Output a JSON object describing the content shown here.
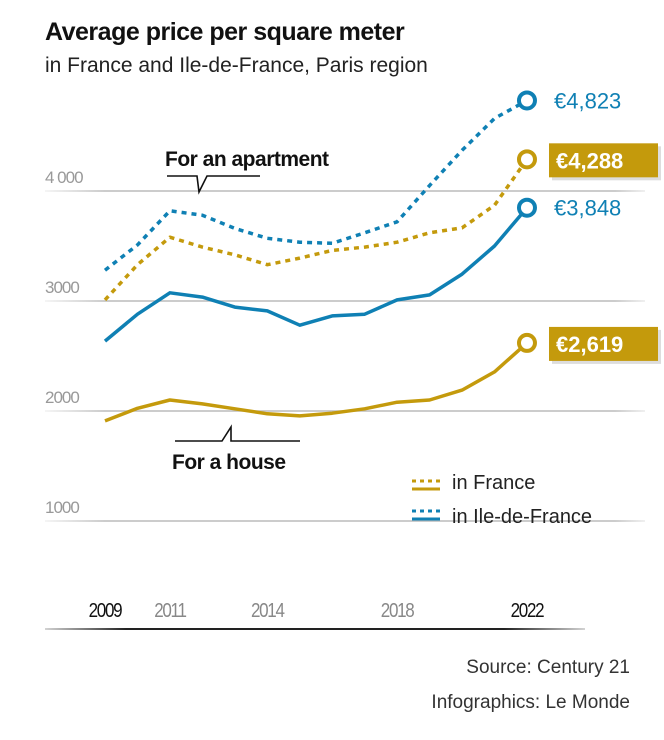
{
  "chart_data": {
    "type": "line",
    "title": "Average price per square meter",
    "subtitle": "in France and Ile-de-France, Paris region",
    "x": [
      2009,
      2010,
      2011,
      2012,
      2013,
      2014,
      2015,
      2016,
      2017,
      2018,
      2019,
      2020,
      2021,
      2022
    ],
    "x_tick_labels": [
      "2009",
      "2011",
      "2014",
      "2018",
      "2022"
    ],
    "y_ticks": [
      1000,
      2000,
      3000,
      4000
    ],
    "y_tick_labels": [
      "1000",
      "2000",
      "3000",
      "4 000"
    ],
    "ylim": [
      0,
      4900
    ],
    "grid": true,
    "series": [
      {
        "key": "apt_idf",
        "group": "For an apartment",
        "region": "in Ile-de-France",
        "style": "dotted",
        "color": "#0f80b4",
        "values": [
          3280,
          3510,
          3820,
          3780,
          3660,
          3570,
          3535,
          3525,
          3620,
          3720,
          4050,
          4370,
          4660,
          4823
        ],
        "end_label": "€4,823",
        "end_label_boxed": false
      },
      {
        "key": "apt_fr",
        "group": "For an apartment",
        "region": "in France",
        "style": "dotted",
        "color": "#c49a0c",
        "values": [
          3010,
          3330,
          3580,
          3490,
          3420,
          3330,
          3390,
          3460,
          3490,
          3535,
          3620,
          3665,
          3870,
          4288
        ],
        "end_label": "€4,288",
        "end_label_boxed": true
      },
      {
        "key": "house_idf",
        "group": "For a house",
        "region": "in Ile-de-France",
        "style": "solid",
        "color": "#0f80b4",
        "values": [
          2635,
          2880,
          3075,
          3035,
          2945,
          2910,
          2780,
          2865,
          2880,
          3010,
          3055,
          3245,
          3500,
          3848
        ],
        "end_label": "€3,848",
        "end_label_boxed": false
      },
      {
        "key": "house_fr",
        "group": "For a house",
        "region": "in France",
        "style": "solid",
        "color": "#c49a0c",
        "values": [
          1910,
          2025,
          2100,
          2065,
          2020,
          1975,
          1955,
          1980,
          2020,
          2080,
          2100,
          2190,
          2355,
          2619
        ],
        "end_label": "€2,619",
        "end_label_boxed": true
      }
    ],
    "annotations": {
      "apartment": "For an apartment",
      "house": "For a house"
    },
    "legend": {
      "placement": "bottom-right",
      "items": [
        {
          "label": "in France",
          "color": "#c49a0c"
        },
        {
          "label": "in Ile-de-France",
          "color": "#0f80b4"
        }
      ]
    }
  },
  "footer": {
    "source": "Source: Century 21",
    "credit": "Infographics: Le Monde"
  }
}
